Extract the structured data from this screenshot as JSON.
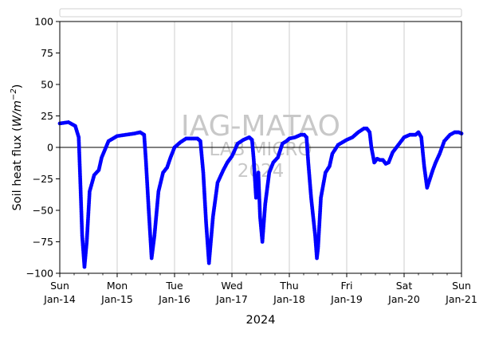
{
  "chart_data": {
    "type": "scatter",
    "title": "",
    "xlabel": "2024",
    "ylabel": "Soil heat flux (W/m⁻²)",
    "ylabel_main": "Soil heat flux (",
    "ylabel_unit": "W/m",
    "ylabel_exp": "−2",
    "ylabel_close": ")",
    "ylim": [
      -100,
      100
    ],
    "yticks": [
      100,
      75,
      50,
      25,
      0,
      -25,
      -50,
      -75,
      -100
    ],
    "ytick_labels": [
      "100",
      "75",
      "50",
      "25",
      "0",
      "−25",
      "−50",
      "−75",
      "−100"
    ],
    "xlim": [
      0,
      7
    ],
    "x_unit": "days since Sun Jan-14 00:00",
    "xticks": [
      {
        "day": 0,
        "line1": "Sun",
        "line2": "Jan-14"
      },
      {
        "day": 1,
        "line1": "Mon",
        "line2": "Jan-15"
      },
      {
        "day": 2,
        "line1": "Tue",
        "line2": "Jan-16"
      },
      {
        "day": 3,
        "line1": "Wed",
        "line2": "Jan-17"
      },
      {
        "day": 4,
        "line1": "Thu",
        "line2": "Jan-18"
      },
      {
        "day": 5,
        "line1": "Fri",
        "line2": "Jan-19"
      },
      {
        "day": 6,
        "line1": "Sat",
        "line2": "Jan-20"
      },
      {
        "day": 7,
        "line1": "Sun",
        "line2": "Jan-21"
      }
    ],
    "grid": "vertical",
    "zero_line": true,
    "legend": "top (empty)",
    "marker_color": "#0000ff",
    "series": [
      {
        "points": [
          [
            0.0,
            19
          ],
          [
            0.15,
            20
          ],
          [
            0.27,
            17
          ],
          [
            0.33,
            8
          ],
          [
            0.36,
            -30
          ],
          [
            0.39,
            -70
          ],
          [
            0.43,
            -95
          ],
          [
            0.47,
            -75
          ],
          [
            0.52,
            -35
          ],
          [
            0.6,
            -22
          ],
          [
            0.68,
            -18
          ],
          [
            0.73,
            -8
          ],
          [
            0.85,
            5
          ],
          [
            1.0,
            9
          ],
          [
            1.15,
            10
          ],
          [
            1.3,
            11
          ],
          [
            1.4,
            12
          ],
          [
            1.47,
            10
          ],
          [
            1.5,
            -10
          ],
          [
            1.55,
            -50
          ],
          [
            1.6,
            -88
          ],
          [
            1.65,
            -70
          ],
          [
            1.72,
            -35
          ],
          [
            1.8,
            -20
          ],
          [
            1.87,
            -16
          ],
          [
            1.93,
            -8
          ],
          [
            2.0,
            0
          ],
          [
            2.1,
            4
          ],
          [
            2.2,
            7
          ],
          [
            2.3,
            7
          ],
          [
            2.4,
            7
          ],
          [
            2.45,
            5
          ],
          [
            2.5,
            -20
          ],
          [
            2.55,
            -60
          ],
          [
            2.6,
            -92
          ],
          [
            2.67,
            -55
          ],
          [
            2.75,
            -28
          ],
          [
            2.85,
            -18
          ],
          [
            2.92,
            -12
          ],
          [
            3.0,
            -7
          ],
          [
            3.1,
            3
          ],
          [
            3.2,
            6
          ],
          [
            3.3,
            8
          ],
          [
            3.35,
            6
          ],
          [
            3.38,
            -10
          ],
          [
            3.42,
            -40
          ],
          [
            3.46,
            -20
          ],
          [
            3.49,
            -55
          ],
          [
            3.53,
            -75
          ],
          [
            3.58,
            -45
          ],
          [
            3.65,
            -20
          ],
          [
            3.72,
            -12
          ],
          [
            3.8,
            -8
          ],
          [
            3.88,
            3
          ],
          [
            3.95,
            5
          ],
          [
            4.0,
            7
          ],
          [
            4.1,
            8
          ],
          [
            4.2,
            10
          ],
          [
            4.26,
            10
          ],
          [
            4.3,
            8
          ],
          [
            4.33,
            -12
          ],
          [
            4.38,
            -40
          ],
          [
            4.45,
            -70
          ],
          [
            4.48,
            -88
          ],
          [
            4.5,
            -80
          ],
          [
            4.55,
            -40
          ],
          [
            4.63,
            -20
          ],
          [
            4.7,
            -15
          ],
          [
            4.75,
            -5
          ],
          [
            4.85,
            2
          ],
          [
            5.0,
            6
          ],
          [
            5.1,
            8
          ],
          [
            5.2,
            12
          ],
          [
            5.3,
            15
          ],
          [
            5.35,
            15
          ],
          [
            5.4,
            12
          ],
          [
            5.43,
            0
          ],
          [
            5.48,
            -12
          ],
          [
            5.53,
            -9
          ],
          [
            5.58,
            -10
          ],
          [
            5.63,
            -10
          ],
          [
            5.68,
            -13
          ],
          [
            5.73,
            -12
          ],
          [
            5.8,
            -4
          ],
          [
            5.9,
            2
          ],
          [
            6.0,
            8
          ],
          [
            6.1,
            10
          ],
          [
            6.2,
            10
          ],
          [
            6.25,
            12
          ],
          [
            6.3,
            8
          ],
          [
            6.35,
            -15
          ],
          [
            6.4,
            -32
          ],
          [
            6.45,
            -25
          ],
          [
            6.5,
            -18
          ],
          [
            6.55,
            -12
          ],
          [
            6.62,
            -5
          ],
          [
            6.7,
            5
          ],
          [
            6.8,
            10
          ],
          [
            6.88,
            12
          ],
          [
            6.95,
            12
          ],
          [
            7.0,
            11
          ]
        ]
      }
    ]
  },
  "watermark": {
    "line1": "IAG-MATAO",
    "line2": "LAB MICRO",
    "line3": "2024"
  }
}
